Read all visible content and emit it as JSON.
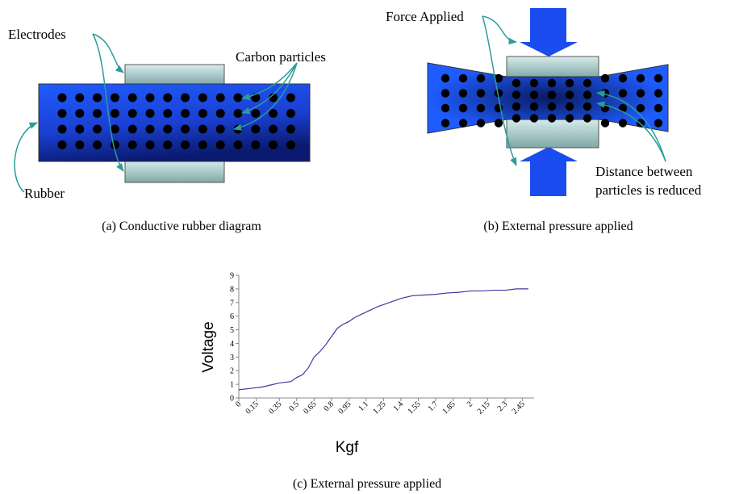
{
  "panel_a": {
    "electrodes": "Electrodes",
    "carbon": "Carbon particles",
    "rubber": "Rubber",
    "caption": "(a)  Conductive rubber diagram"
  },
  "panel_b": {
    "force": "Force Applied",
    "distance_1": "Distance between",
    "distance_2": "particles is reduced",
    "caption": "(b)  External pressure applied"
  },
  "chart_data": {
    "type": "line",
    "ylabel": "Voltage",
    "xlabel": "Kgf",
    "caption": "(c)  External pressure applied",
    "color": "#3c3ca0",
    "x": [
      0,
      0.1,
      0.2,
      0.3,
      0.35,
      0.45,
      0.5,
      0.55,
      0.6,
      0.65,
      0.7,
      0.75,
      0.8,
      0.85,
      0.9,
      0.95,
      1.0,
      1.05,
      1.1,
      1.2,
      1.3,
      1.4,
      1.5,
      1.6,
      1.7,
      1.8,
      1.9,
      2.0,
      2.1,
      2.2,
      2.3,
      2.4,
      2.5
    ],
    "values": [
      0.6,
      0.7,
      0.8,
      1.0,
      1.1,
      1.2,
      1.5,
      1.7,
      2.2,
      3.0,
      3.4,
      3.9,
      4.5,
      5.1,
      5.4,
      5.6,
      5.9,
      6.1,
      6.3,
      6.7,
      7.0,
      7.3,
      7.5,
      7.55,
      7.6,
      7.7,
      7.75,
      7.85,
      7.85,
      7.9,
      7.9,
      8.0,
      8.0
    ],
    "xlim": [
      0,
      2.55
    ],
    "ylim": [
      0,
      9
    ],
    "xticks": [
      0,
      0.15,
      0.35,
      0.5,
      0.65,
      0.8,
      0.95,
      1.1,
      1.25,
      1.4,
      1.55,
      1.7,
      1.85,
      2,
      2.15,
      2.3,
      2.45
    ],
    "yticks": [
      0,
      1,
      2,
      3,
      4,
      5,
      6,
      7,
      8,
      9
    ]
  }
}
